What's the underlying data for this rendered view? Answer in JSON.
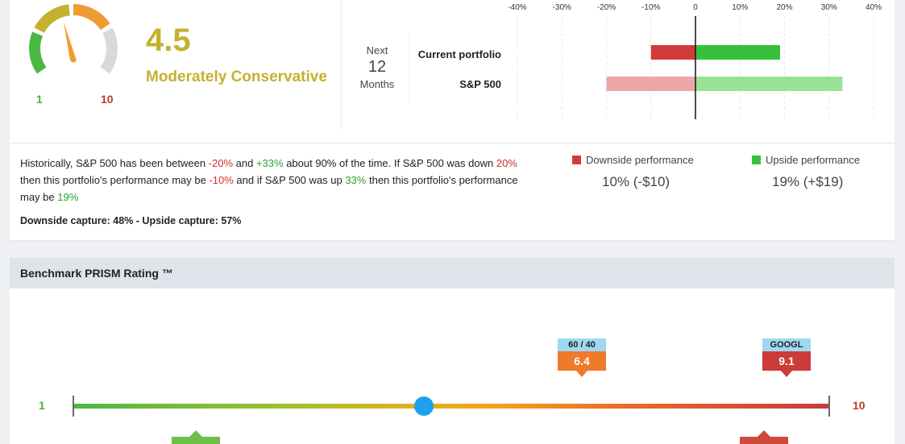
{
  "risk": {
    "score": "4.5",
    "label": "Moderately Conservative",
    "gauge_min": "1",
    "gauge_max": "10",
    "gauge_level": 4.5,
    "colors": {
      "low": "#4cb844",
      "mid": "#c5b12e",
      "high": "#ef9c35",
      "inactive": "#d7d9dc",
      "needle": "#ef9c35"
    }
  },
  "horizon": {
    "line1": "Next",
    "number": "12",
    "line2": "Months"
  },
  "chart_data": {
    "type": "bar",
    "orientation": "horizontal",
    "xlim": [
      -40,
      40
    ],
    "ticks": [
      "-40%",
      "-30%",
      "-20%",
      "-10%",
      "0",
      "10%",
      "20%",
      "30%",
      "40%"
    ],
    "tick_values": [
      -40,
      -30,
      -20,
      -10,
      0,
      10,
      20,
      30,
      40
    ],
    "grid": true,
    "categories": [
      "Current portfolio",
      "S&P 500"
    ],
    "series": [
      {
        "values": [
          -10,
          -20
        ],
        "colors": [
          "#d33a3a",
          "#eea6a6"
        ]
      },
      {
        "values": [
          19,
          33
        ],
        "colors": [
          "#35c23a",
          "#98e296"
        ]
      }
    ]
  },
  "description": {
    "p1": "Historically, S&P 500 has been between ",
    "v1": "-20%",
    "p2": " and ",
    "v2": "+33%",
    "p3": " about 90% of the time. If S&P 500 was down ",
    "v3": "20%",
    "p4": " then this portfolio's performance may be ",
    "v4": "-10%",
    "p5": " and if S&P 500 was up ",
    "v5": "33%",
    "p6": " then this portfolio's performance may be ",
    "v6": "19%",
    "capture": "Downside capture: 48% - Upside capture: 57%"
  },
  "performance": {
    "downside_label": "Downside performance",
    "downside_value": "10% (-$10)",
    "downside_color": "#d33a3a",
    "upside_label": "Upside performance",
    "upside_value": "19% (+$19)",
    "upside_color": "#35c23a"
  },
  "prism": {
    "title": "Benchmark PRISM Rating ™",
    "scale_min": "1",
    "scale_max": "10",
    "marker_value": 4.5,
    "flags": [
      {
        "name": "60 / 40",
        "value": "6.4"
      },
      {
        "name": "GOOGL",
        "value": "9.1"
      }
    ]
  }
}
